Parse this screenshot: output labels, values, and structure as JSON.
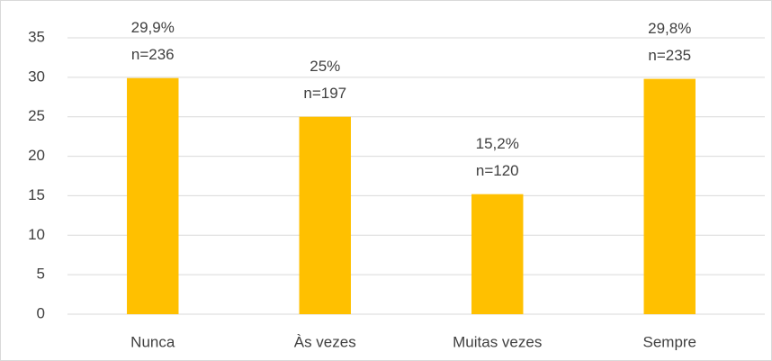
{
  "chart_data": {
    "type": "bar",
    "categories": [
      "Nunca",
      "Às vezes",
      "Muitas vezes",
      "Sempre"
    ],
    "values": [
      29.9,
      25,
      15.2,
      29.8
    ],
    "value_labels": [
      "29,9%",
      "25%",
      "15,2%",
      "29,8%"
    ],
    "n_labels": [
      "n=236",
      "n=197",
      "n=120",
      "n=235"
    ],
    "color": "#ffc000",
    "ylim": [
      0,
      35
    ],
    "yticks": [
      0,
      5,
      10,
      15,
      20,
      25,
      30,
      35
    ],
    "grid": true
  }
}
